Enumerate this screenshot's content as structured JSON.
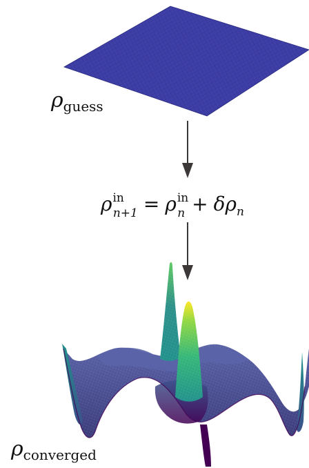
{
  "labels": {
    "guess": {
      "symbol": "ρ",
      "subscript": "guess"
    },
    "update": {
      "lhs_symbol": "ρ",
      "lhs_sup": "in",
      "lhs_sub": "n+1",
      "equals": "=",
      "rhs_symbol": "ρ",
      "rhs_sup": "in",
      "rhs_sub": "n",
      "plus": "+",
      "delta_term": "δρ",
      "delta_sub": "n"
    },
    "converged": {
      "symbol": "ρ",
      "subscript": "converged"
    }
  },
  "colors": {
    "flat_surface": "#3f3fa8",
    "flat_grid": "#2d2d8a",
    "arrow": "#3d3838",
    "viridis_low": "#440154",
    "viridis_mid": "#3b528b",
    "viridis_teal": "#21918c",
    "viridis_green": "#5ec962",
    "viridis_high": "#fde725"
  }
}
